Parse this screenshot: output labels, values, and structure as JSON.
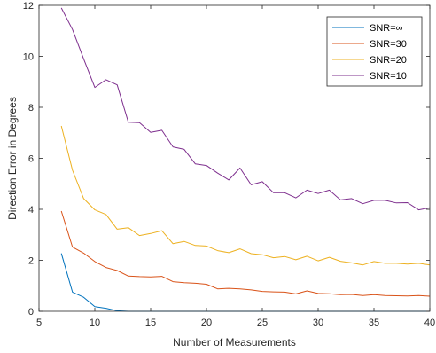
{
  "chart_data": {
    "type": "line",
    "xlabel": "Number of Measurements",
    "ylabel": "Direction Error in Degrees",
    "xlim": [
      5,
      40
    ],
    "ylim": [
      0,
      12
    ],
    "xticks": [
      5,
      10,
      15,
      20,
      25,
      30,
      35,
      40
    ],
    "yticks": [
      0,
      2,
      4,
      6,
      8,
      10,
      12
    ],
    "grid": false,
    "legend_position": "top-right",
    "x": [
      7,
      8,
      9,
      10,
      11,
      12,
      13,
      14,
      15,
      16,
      17,
      18,
      19,
      20,
      21,
      22,
      23,
      24,
      25,
      26,
      27,
      28,
      29,
      30,
      31,
      32,
      33,
      34,
      35,
      36,
      37,
      38,
      39,
      40
    ],
    "series": [
      {
        "name": "SNR=∞",
        "color": "#0072BD",
        "values": [
          2.27,
          0.75,
          0.55,
          0.18,
          0.12,
          0.02,
          0,
          0,
          0,
          0,
          0,
          0,
          0,
          0,
          0,
          0,
          0,
          0,
          0,
          0,
          0,
          0,
          0,
          0,
          0,
          0,
          0,
          0,
          0,
          0,
          0,
          0,
          0,
          0
        ]
      },
      {
        "name": "SNR=30",
        "color": "#D95319",
        "values": [
          3.93,
          2.52,
          2.28,
          1.95,
          1.72,
          1.6,
          1.38,
          1.36,
          1.35,
          1.37,
          1.16,
          1.12,
          1.1,
          1.06,
          0.88,
          0.9,
          0.88,
          0.84,
          0.78,
          0.76,
          0.75,
          0.68,
          0.8,
          0.7,
          0.69,
          0.65,
          0.66,
          0.62,
          0.65,
          0.62,
          0.61,
          0.6,
          0.62,
          0.59
        ]
      },
      {
        "name": "SNR=20",
        "color": "#EDB120",
        "values": [
          7.27,
          5.53,
          4.42,
          3.98,
          3.8,
          3.22,
          3.28,
          2.97,
          3.05,
          3.16,
          2.65,
          2.74,
          2.58,
          2.56,
          2.38,
          2.3,
          2.45,
          2.26,
          2.22,
          2.1,
          2.15,
          2.02,
          2.16,
          1.98,
          2.12,
          1.96,
          1.9,
          1.82,
          1.95,
          1.88,
          1.88,
          1.85,
          1.88,
          1.82
        ]
      },
      {
        "name": "SNR=10",
        "color": "#7E2F8E",
        "values": [
          11.9,
          11.05,
          9.9,
          8.78,
          9.08,
          8.88,
          7.42,
          7.4,
          7.02,
          7.1,
          6.45,
          6.35,
          5.78,
          5.72,
          5.42,
          5.15,
          5.62,
          4.96,
          5.08,
          4.65,
          4.65,
          4.45,
          4.75,
          4.62,
          4.75,
          4.37,
          4.42,
          4.22,
          4.35,
          4.35,
          4.25,
          4.26,
          3.98,
          4.06
        ]
      }
    ]
  }
}
